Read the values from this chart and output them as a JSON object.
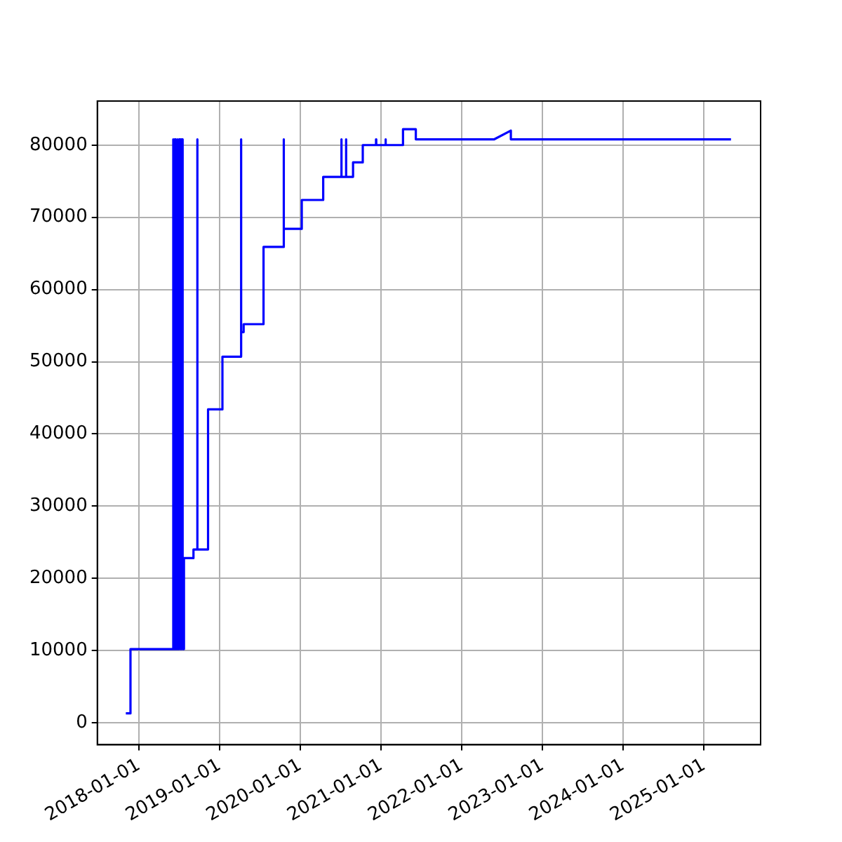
{
  "chart_data": {
    "type": "line",
    "color": "#0000ff",
    "grid": true,
    "marker": "none",
    "line_style": "solid",
    "x": [
      "2017-11-03",
      "2017-11-24",
      "2017-11-24",
      "2018-06-03",
      "2018-06-03",
      "2018-06-07",
      "2018-06-07",
      "2018-06-12",
      "2018-06-12",
      "2018-06-17",
      "2018-06-17",
      "2018-06-22",
      "2018-06-22",
      "2018-06-27",
      "2018-06-27",
      "2018-07-03",
      "2018-07-03",
      "2018-07-08",
      "2018-07-08",
      "2018-07-13",
      "2018-07-13",
      "2018-07-18",
      "2018-07-18",
      "2018-07-24",
      "2018-07-24",
      "2018-09-05",
      "2018-09-05",
      "2018-09-22",
      "2018-09-22",
      "2018-09-23",
      "2018-09-23",
      "2018-11-10",
      "2018-11-10",
      "2019-01-14",
      "2019-01-14",
      "2019-04-08",
      "2019-04-08",
      "2019-04-09",
      "2019-04-09",
      "2019-04-20",
      "2019-04-20",
      "2019-07-19",
      "2019-07-19",
      "2019-10-18",
      "2019-10-18",
      "2019-10-19",
      "2019-10-19",
      "2020-01-08",
      "2020-01-08",
      "2020-04-14",
      "2020-04-14",
      "2020-07-05",
      "2020-07-05",
      "2020-07-06",
      "2020-07-06",
      "2020-07-26",
      "2020-07-26",
      "2020-07-27",
      "2020-07-27",
      "2020-08-27",
      "2020-08-27",
      "2020-10-10",
      "2020-10-10",
      "2020-12-09",
      "2020-12-09",
      "2020-12-10",
      "2020-12-10",
      "2021-01-21",
      "2021-01-21",
      "2021-01-22",
      "2021-01-22",
      "2021-04-10",
      "2021-04-10",
      "2021-06-07",
      "2021-06-07",
      "2022-05-28",
      "2022-08-11",
      "2022-08-11",
      "2025-05-03"
    ],
    "values": [
      1300,
      1300,
      10200,
      10200,
      80800,
      80800,
      10200,
      10200,
      80800,
      80800,
      10200,
      10200,
      80800,
      80800,
      10200,
      10200,
      80800,
      80800,
      10200,
      10200,
      80800,
      80800,
      10200,
      10200,
      22800,
      22800,
      24000,
      24000,
      80800,
      80800,
      24000,
      24000,
      43400,
      43400,
      50700,
      50700,
      80800,
      80800,
      54100,
      54100,
      55200,
      55200,
      65900,
      65900,
      80800,
      80800,
      68400,
      68400,
      72400,
      72400,
      75600,
      75600,
      80800,
      80800,
      75600,
      75600,
      80800,
      80800,
      75600,
      75600,
      77600,
      77600,
      80000,
      80000,
      80800,
      80800,
      80000,
      80000,
      80800,
      80800,
      80000,
      80000,
      82200,
      82200,
      80800,
      80800,
      82000,
      80800,
      80800
    ],
    "xlim": [
      "2017-06-27",
      "2025-09-14"
    ],
    "xticks": [
      "2018-01-01",
      "2019-01-01",
      "2020-01-01",
      "2021-01-01",
      "2022-01-01",
      "2023-01-01",
      "2024-01-01",
      "2025-01-01"
    ],
    "ylim": [
      -3050,
      86100
    ],
    "yticks": [
      0,
      10000,
      20000,
      30000,
      40000,
      50000,
      60000,
      70000,
      80000
    ]
  }
}
